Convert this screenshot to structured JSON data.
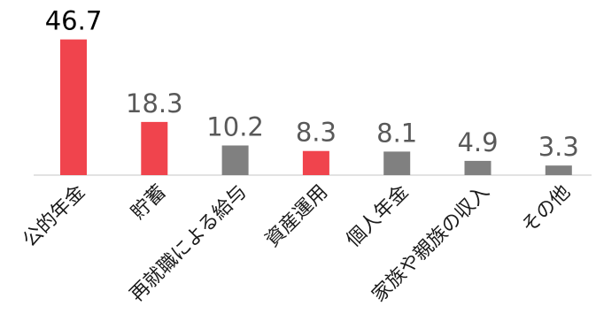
{
  "chart_data": {
    "type": "bar",
    "categories": [
      "公的年金",
      "貯蓄",
      "再就職による給与",
      "資産運用",
      "個人年金",
      "家族や親族の収入",
      "その他"
    ],
    "values": [
      46.7,
      18.3,
      10.2,
      8.3,
      8.1,
      4.9,
      3.3
    ],
    "data_labels": [
      "46.7",
      "18.3",
      "10.2",
      "8.3",
      "8.1",
      "4.9",
      "3.3"
    ],
    "bar_colors": [
      "#f0444d",
      "#f0444d",
      "#808080",
      "#f0444d",
      "#808080",
      "#808080",
      "#808080"
    ],
    "label_colors": [
      "#000000",
      "#595959",
      "#595959",
      "#595959",
      "#595959",
      "#595959",
      "#595959"
    ],
    "ylim": [
      0,
      50
    ],
    "grid": false,
    "legend": "none"
  }
}
